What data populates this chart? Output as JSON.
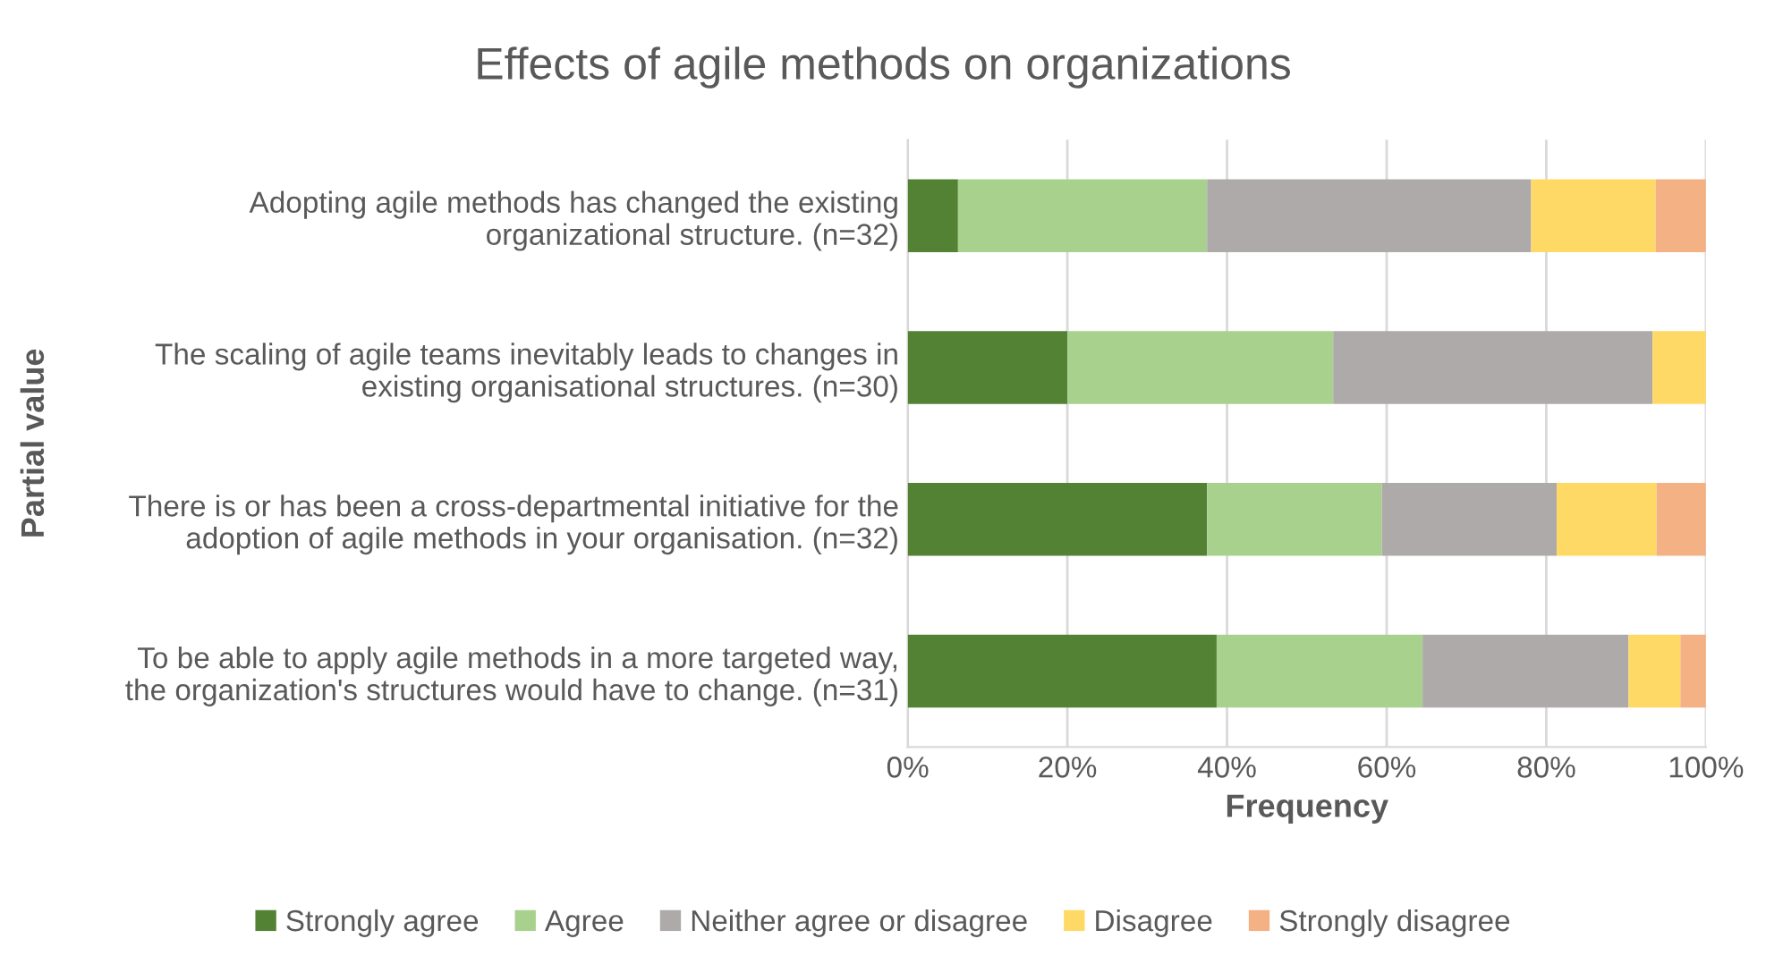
{
  "chart_data": {
    "type": "bar",
    "orientation": "horizontal",
    "stacked": true,
    "title": "Effects of agile methods on organizations",
    "xlabel": "Frequency",
    "ylabel": "Partial value",
    "categories": [
      "Adopting agile methods has changed the existing\norganizational structure. (n=32)",
      "The scaling of agile teams inevitably leads to changes in\nexisting organisational structures. (n=30)",
      "There is or has been a cross-departmental initiative for the\nadoption of agile methods in your organisation. (n=32)",
      "To be able to apply agile methods in a more targeted way,\nthe organization's structures would have to change. (n=31)"
    ],
    "series": [
      {
        "name": "Strongly agree",
        "color": "#548235",
        "values": [
          6.3,
          20.0,
          37.5,
          38.7
        ]
      },
      {
        "name": "Agree",
        "color": "#a9d18e",
        "values": [
          31.2,
          33.3,
          21.9,
          25.8
        ]
      },
      {
        "name": "Neither agree or disagree",
        "color": "#aeaaaa",
        "values": [
          40.6,
          40.0,
          21.9,
          25.8
        ]
      },
      {
        "name": "Disagree",
        "color": "#ffd966",
        "values": [
          15.6,
          6.7,
          12.5,
          6.5
        ]
      },
      {
        "name": "Strongly disagree",
        "color": "#f4b183",
        "values": [
          6.3,
          0,
          6.2,
          3.2
        ]
      }
    ],
    "xlim": [
      0,
      100
    ],
    "xticks": [
      {
        "value": 0,
        "label": "0%"
      },
      {
        "value": 20,
        "label": "20%"
      },
      {
        "value": 40,
        "label": "40%"
      },
      {
        "value": 60,
        "label": "60%"
      },
      {
        "value": 80,
        "label": "80%"
      },
      {
        "value": 100,
        "label": "100%"
      }
    ],
    "grid": "x",
    "legend": "bottom"
  }
}
